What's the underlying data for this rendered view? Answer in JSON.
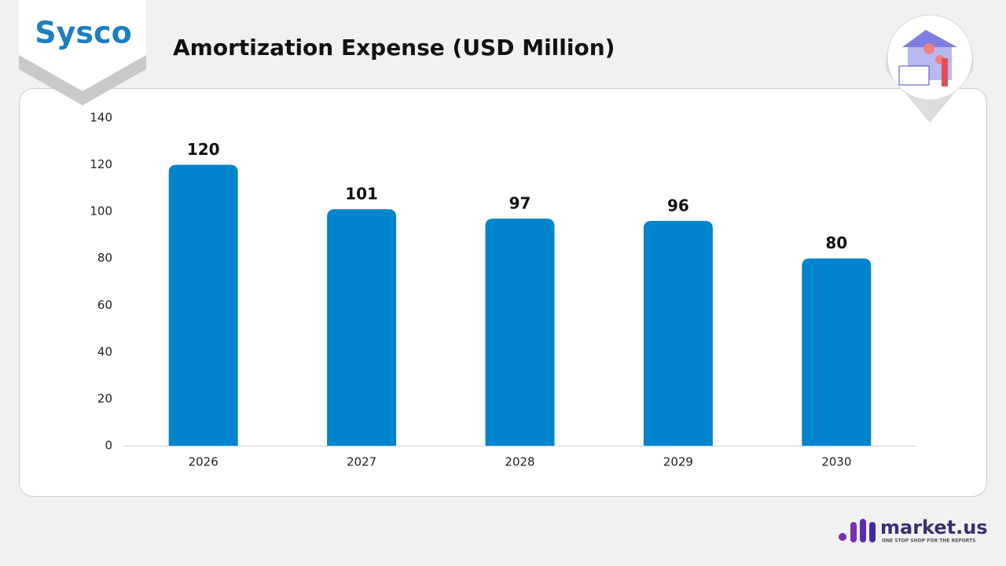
{
  "logo": "Sysco",
  "footer": {
    "brand": "market.us",
    "tagline": "ONE STOP SHOP FOR THE REPORTS"
  },
  "chart_data": {
    "type": "bar",
    "title": "Amortization Expense (USD Million)",
    "categories": [
      "2026",
      "2027",
      "2028",
      "2029",
      "2030"
    ],
    "values": [
      120,
      101,
      97,
      96,
      80
    ],
    "color": "#0284cf",
    "ylim": [
      0,
      140
    ],
    "yticks": [
      0,
      20,
      40,
      60,
      80,
      100,
      120,
      140
    ],
    "grid": false
  }
}
